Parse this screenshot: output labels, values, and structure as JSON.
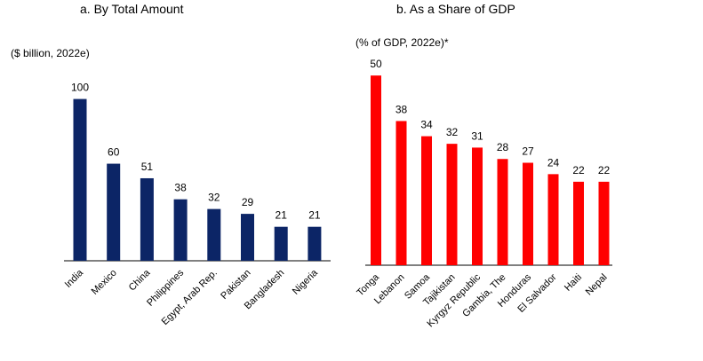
{
  "panels": {
    "a": {
      "title": "a. By Total Amount",
      "unit": "($ billion, 2022e)"
    },
    "b": {
      "title": "b. As a Share of GDP",
      "unit": "(% of GDP, 2022e)*"
    }
  },
  "colors": {
    "panel_a_bars": "#0c2566",
    "panel_b_bars": "#ff0000",
    "axis": "#000000"
  },
  "chart_data": [
    {
      "type": "bar",
      "title": "a. By Total Amount",
      "ylabel": "($ billion, 2022e)",
      "categories": [
        "India",
        "Mexico",
        "China",
        "Philippines",
        "Egypt, Arab Rep.",
        "Pakistan",
        "Bangladesh",
        "Nigeria"
      ],
      "values": [
        100,
        60,
        51,
        38,
        32,
        29,
        21,
        21
      ],
      "data_labels": [
        "100",
        "60",
        "51",
        "38",
        "32",
        "29",
        "21",
        "21"
      ],
      "ylim": [
        0,
        125
      ],
      "grid": false,
      "legend": "none"
    },
    {
      "type": "bar",
      "title": "b. As a Share of GDP",
      "ylabel": "(% of GDP, 2022e)*",
      "categories": [
        "Tonga",
        "Lebanon",
        "Samoa",
        "Tajikistan",
        "Kyrgyz Republic",
        "Gambia, The",
        "Honduras",
        "El Salvador",
        "Haiti",
        "Nepal"
      ],
      "values": [
        50,
        38,
        34,
        32,
        31,
        28,
        27,
        24,
        22,
        22
      ],
      "data_labels": [
        "50",
        "38",
        "34",
        "32",
        "31",
        "28",
        "27",
        "24",
        "22",
        "22"
      ],
      "ylim": [
        0,
        50.5
      ],
      "grid": false,
      "legend": "none"
    }
  ]
}
